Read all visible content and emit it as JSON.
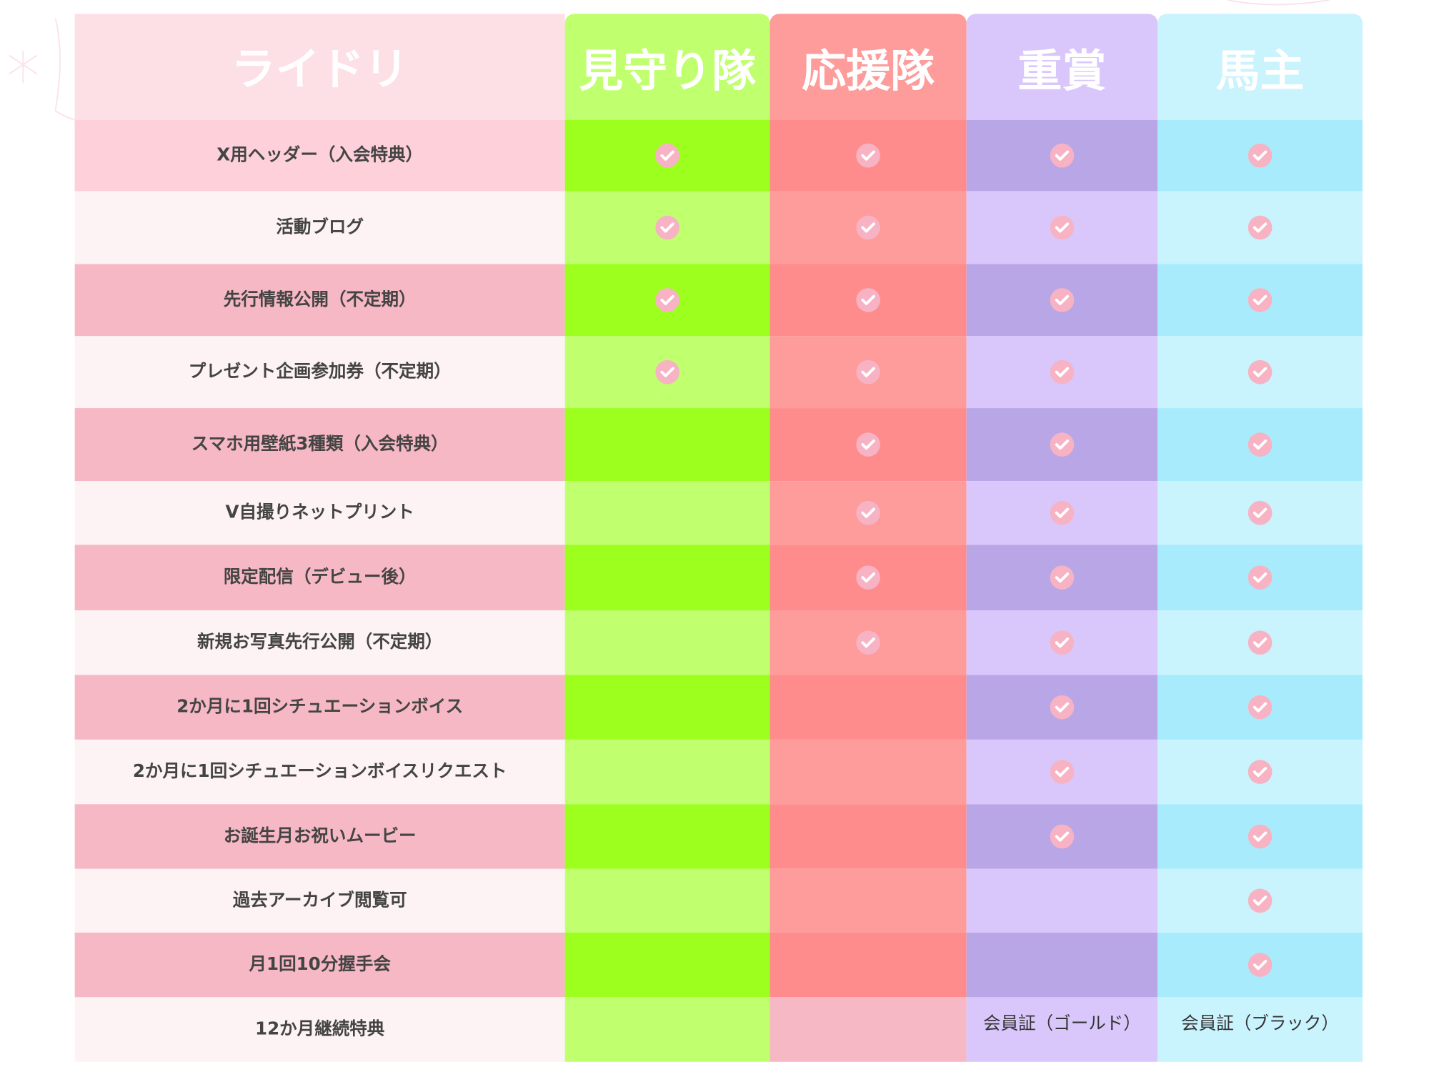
{
  "header": {
    "title": "ライドリ",
    "tiers": [
      "見守り隊",
      "応援隊",
      "重賞",
      "馬主"
    ]
  },
  "table": {
    "rows": [
      {
        "feature": "X用ヘッダー（入会特典）",
        "cells": [
          true,
          true,
          true,
          true
        ]
      },
      {
        "feature": "活動ブログ",
        "cells": [
          true,
          true,
          true,
          true
        ]
      },
      {
        "feature": "先行情報公開（不定期）",
        "cells": [
          true,
          true,
          true,
          true
        ]
      },
      {
        "feature": "プレゼント企画参加券（不定期）",
        "cells": [
          true,
          true,
          true,
          true
        ]
      },
      {
        "feature": "スマホ用壁紙3種類（入会特典）",
        "cells": [
          false,
          true,
          true,
          true
        ]
      },
      {
        "feature": "V自撮りネットプリント",
        "cells": [
          false,
          true,
          true,
          true
        ]
      },
      {
        "feature": "限定配信（デビュー後）",
        "cells": [
          false,
          true,
          true,
          true
        ]
      },
      {
        "feature": "新規お写真先行公開（不定期）",
        "cells": [
          false,
          true,
          true,
          true
        ]
      },
      {
        "feature": "2か月に1回シチュエーションボイス",
        "cells": [
          false,
          false,
          true,
          true
        ]
      },
      {
        "feature": "2か月に1回シチュエーションボイスリクエスト",
        "cells": [
          false,
          false,
          true,
          true
        ]
      },
      {
        "feature": "お誕生月お祝いムービー",
        "cells": [
          false,
          false,
          true,
          true
        ]
      },
      {
        "feature": "過去アーカイブ閲覧可",
        "cells": [
          false,
          false,
          false,
          true
        ]
      },
      {
        "feature": "月1回10分握手会",
        "cells": [
          false,
          false,
          false,
          true
        ]
      },
      {
        "feature": "12か月継続特典",
        "cells": [
          false,
          false,
          "会員証（ゴールド）",
          "会員証（ブラック）"
        ]
      }
    ]
  }
}
